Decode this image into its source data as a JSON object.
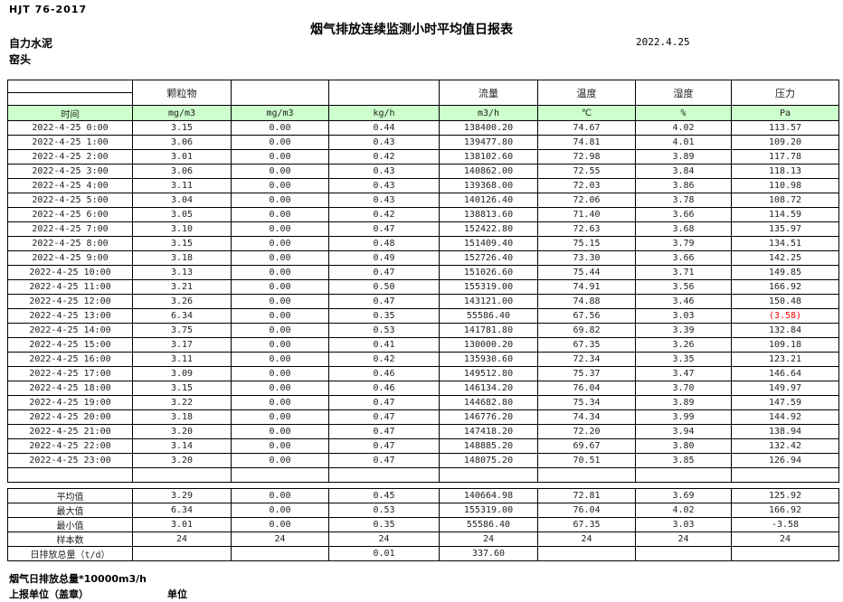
{
  "page": {
    "standard": "HJT  76-2017",
    "title": "烟气排放连续监测小时平均值日报表",
    "date": "2022.4.25",
    "company": "自力水泥",
    "unit_name": "窑头"
  },
  "colors": {
    "header_green": "#ccffcc",
    "negative_red": "#ff0000",
    "border": "#000000"
  },
  "table": {
    "group_headers": {
      "pm": "颗粒物",
      "blank1": "",
      "blank2": "",
      "flow": "流量",
      "temperature": "温度",
      "humidity": "湿度",
      "pressure": "压力"
    },
    "unit_row": {
      "time": "时间",
      "pm_mg": "mg/m3",
      "mg2": "mg/m3",
      "kgh": "kg/h",
      "m3h": "m3/h",
      "celsius": "℃",
      "percent": "%",
      "pa": "Pa"
    },
    "rows": [
      {
        "time": "2022-4-25 0:00",
        "values": [
          "3.15",
          "0.00",
          "0.44",
          "138400.20",
          "74.67",
          "4.02",
          "113.57"
        ]
      },
      {
        "time": "2022-4-25 1:00",
        "values": [
          "3.06",
          "0.00",
          "0.43",
          "139477.80",
          "74.81",
          "4.01",
          "109.20"
        ]
      },
      {
        "time": "2022-4-25 2:00",
        "values": [
          "3.01",
          "0.00",
          "0.42",
          "138102.60",
          "72.98",
          "3.89",
          "117.78"
        ]
      },
      {
        "time": "2022-4-25 3:00",
        "values": [
          "3.06",
          "0.00",
          "0.43",
          "140862.00",
          "72.55",
          "3.84",
          "118.13"
        ]
      },
      {
        "time": "2022-4-25 4:00",
        "values": [
          "3.11",
          "0.00",
          "0.43",
          "139368.00",
          "72.03",
          "3.86",
          "110.98"
        ]
      },
      {
        "time": "2022-4-25 5:00",
        "values": [
          "3.04",
          "0.00",
          "0.43",
          "140126.40",
          "72.06",
          "3.78",
          "108.72"
        ]
      },
      {
        "time": "2022-4-25 6:00",
        "values": [
          "3.05",
          "0.00",
          "0.42",
          "138813.60",
          "71.40",
          "3.66",
          "114.59"
        ]
      },
      {
        "time": "2022-4-25 7:00",
        "values": [
          "3.10",
          "0.00",
          "0.47",
          "152422.80",
          "72.63",
          "3.68",
          "135.97"
        ]
      },
      {
        "time": "2022-4-25 8:00",
        "values": [
          "3.15",
          "0.00",
          "0.48",
          "151409.40",
          "75.15",
          "3.79",
          "134.51"
        ]
      },
      {
        "time": "2022-4-25 9:00",
        "values": [
          "3.18",
          "0.00",
          "0.49",
          "152726.40",
          "73.30",
          "3.66",
          "142.25"
        ]
      },
      {
        "time": "2022-4-25 10:00",
        "values": [
          "3.13",
          "0.00",
          "0.47",
          "151026.60",
          "75.44",
          "3.71",
          "149.85"
        ]
      },
      {
        "time": "2022-4-25 11:00",
        "values": [
          "3.21",
          "0.00",
          "0.50",
          "155319.00",
          "74.91",
          "3.56",
          "166.92"
        ]
      },
      {
        "time": "2022-4-25 12:00",
        "values": [
          "3.26",
          "0.00",
          "0.47",
          "143121.00",
          "74.88",
          "3.46",
          "150.48"
        ]
      },
      {
        "time": "2022-4-25 13:00",
        "values": [
          "6.34",
          "0.00",
          "0.35",
          "55586.40",
          "67.56",
          "3.03",
          "(3.58)"
        ]
      },
      {
        "time": "2022-4-25 14:00",
        "values": [
          "3.75",
          "0.00",
          "0.53",
          "141781.80",
          "69.82",
          "3.39",
          "132.84"
        ]
      },
      {
        "time": "2022-4-25 15:00",
        "values": [
          "3.17",
          "0.00",
          "0.41",
          "130000.20",
          "67.35",
          "3.26",
          "109.18"
        ]
      },
      {
        "time": "2022-4-25 16:00",
        "values": [
          "3.11",
          "0.00",
          "0.42",
          "135930.60",
          "72.34",
          "3.35",
          "123.21"
        ]
      },
      {
        "time": "2022-4-25 17:00",
        "values": [
          "3.09",
          "0.00",
          "0.46",
          "149512.80",
          "75.37",
          "3.47",
          "146.64"
        ]
      },
      {
        "time": "2022-4-25 18:00",
        "values": [
          "3.15",
          "0.00",
          "0.46",
          "146134.20",
          "76.04",
          "3.70",
          "149.97"
        ]
      },
      {
        "time": "2022-4-25 19:00",
        "values": [
          "3.22",
          "0.00",
          "0.47",
          "144682.80",
          "75.34",
          "3.89",
          "147.59"
        ]
      },
      {
        "time": "2022-4-25 20:00",
        "values": [
          "3.18",
          "0.00",
          "0.47",
          "146776.20",
          "74.34",
          "3.99",
          "144.92"
        ]
      },
      {
        "time": "2022-4-25 21:00",
        "values": [
          "3.20",
          "0.00",
          "0.47",
          "147418.20",
          "72.20",
          "3.94",
          "138.94"
        ]
      },
      {
        "time": "2022-4-25 22:00",
        "values": [
          "3.14",
          "0.00",
          "0.47",
          "148885.20",
          "69.67",
          "3.80",
          "132.42"
        ]
      },
      {
        "time": "2022-4-25 23:00",
        "values": [
          "3.20",
          "0.00",
          "0.47",
          "148075.20",
          "70.51",
          "3.85",
          "126.94"
        ]
      }
    ],
    "summary": [
      {
        "label": "平均值",
        "values": [
          "3.29",
          "0.00",
          "0.45",
          "140664.98",
          "72.81",
          "3.69",
          "125.92"
        ]
      },
      {
        "label": "最大值",
        "values": [
          "6.34",
          "0.00",
          "0.53",
          "155319.00",
          "76.04",
          "4.02",
          "166.92"
        ]
      },
      {
        "label": "最小值",
        "values": [
          "3.01",
          "0.00",
          "0.35",
          "55586.40",
          "67.35",
          "3.03",
          "-3.58"
        ]
      },
      {
        "label": "样本数",
        "values": [
          "24",
          "24",
          "24",
          "24",
          "24",
          "24",
          "24"
        ]
      },
      {
        "label": "日排放总量（t/d）",
        "values": [
          "",
          "",
          "0.01",
          "337.60",
          "",
          "",
          ""
        ]
      }
    ]
  },
  "footer": {
    "note": "烟气日排放总量*10000m3/h",
    "report_unit": "上报单位（盖章）",
    "unit_label": "单位"
  }
}
